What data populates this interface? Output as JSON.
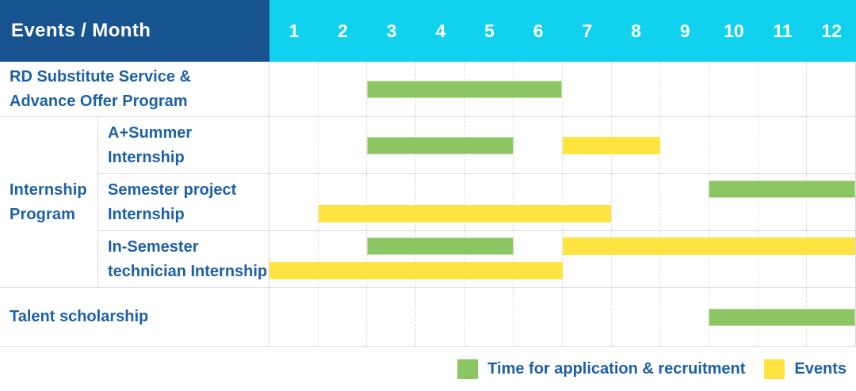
{
  "colors": {
    "navy": "#17538e",
    "cyan": "#10d2ee",
    "blue": "#1d60a5",
    "green": "#8cc663",
    "yellow": "#ffe33e",
    "grid": "#d9d9d9",
    "dash": "#dfdfdf"
  },
  "chart_data": {
    "type": "bar",
    "variant": "gantt-schedule",
    "title": "Events / Month",
    "xlabel": "Month",
    "months": [
      "1",
      "2",
      "3",
      "4",
      "5",
      "6",
      "7",
      "8",
      "9",
      "10",
      "11",
      "12"
    ],
    "x_range": [
      1,
      12
    ],
    "grid": "dashed-vertical-month-lines",
    "legend_position": "bottom-right",
    "legend": [
      {
        "name": "Time for application & recruitment",
        "color_key": "green",
        "color": "#8cc663"
      },
      {
        "name": "Events",
        "color_key": "yellow",
        "color": "#ffe33e"
      }
    ],
    "sections": [
      {
        "group": "",
        "rows": [
          {
            "label": "RD Substitute Service &\nAdvance Offer Program",
            "bars": [
              {
                "series": "Time for application & recruitment",
                "color_key": "green",
                "start_month": 3,
                "end_month": 6,
                "lane": "center"
              }
            ]
          }
        ]
      },
      {
        "group": "Internship\nProgram",
        "rows": [
          {
            "label": "A+Summer\nInternship",
            "bars": [
              {
                "series": "Time for application & recruitment",
                "color_key": "green",
                "start_month": 3,
                "end_month": 5,
                "lane": "center"
              },
              {
                "series": "Events",
                "color_key": "yellow",
                "start_month": 7,
                "end_month": 8,
                "lane": "center"
              }
            ]
          },
          {
            "label": "Semester project\nInternship",
            "bars": [
              {
                "series": "Time for application & recruitment",
                "color_key": "green",
                "start_month": 10,
                "end_month": 12,
                "lane": "top"
              },
              {
                "series": "Events",
                "color_key": "yellow",
                "start_month": 2,
                "end_month": 7,
                "lane": "bottom"
              }
            ]
          },
          {
            "label": "In-Semester\ntechnician Internship",
            "bars": [
              {
                "series": "Time for application & recruitment",
                "color_key": "green",
                "start_month": 3,
                "end_month": 5,
                "lane": "top"
              },
              {
                "series": "Events",
                "color_key": "yellow",
                "start_month": 7,
                "end_month": 12,
                "lane": "top"
              },
              {
                "series": "Events",
                "color_key": "yellow",
                "start_month": 1,
                "end_month": 6,
                "lane": "bottom"
              }
            ]
          }
        ]
      },
      {
        "group": "",
        "rows": [
          {
            "label": "Talent scholarship",
            "bars": [
              {
                "series": "Time for application & recruitment",
                "color_key": "green",
                "start_month": 10,
                "end_month": 12,
                "lane": "center"
              }
            ]
          }
        ]
      }
    ]
  }
}
